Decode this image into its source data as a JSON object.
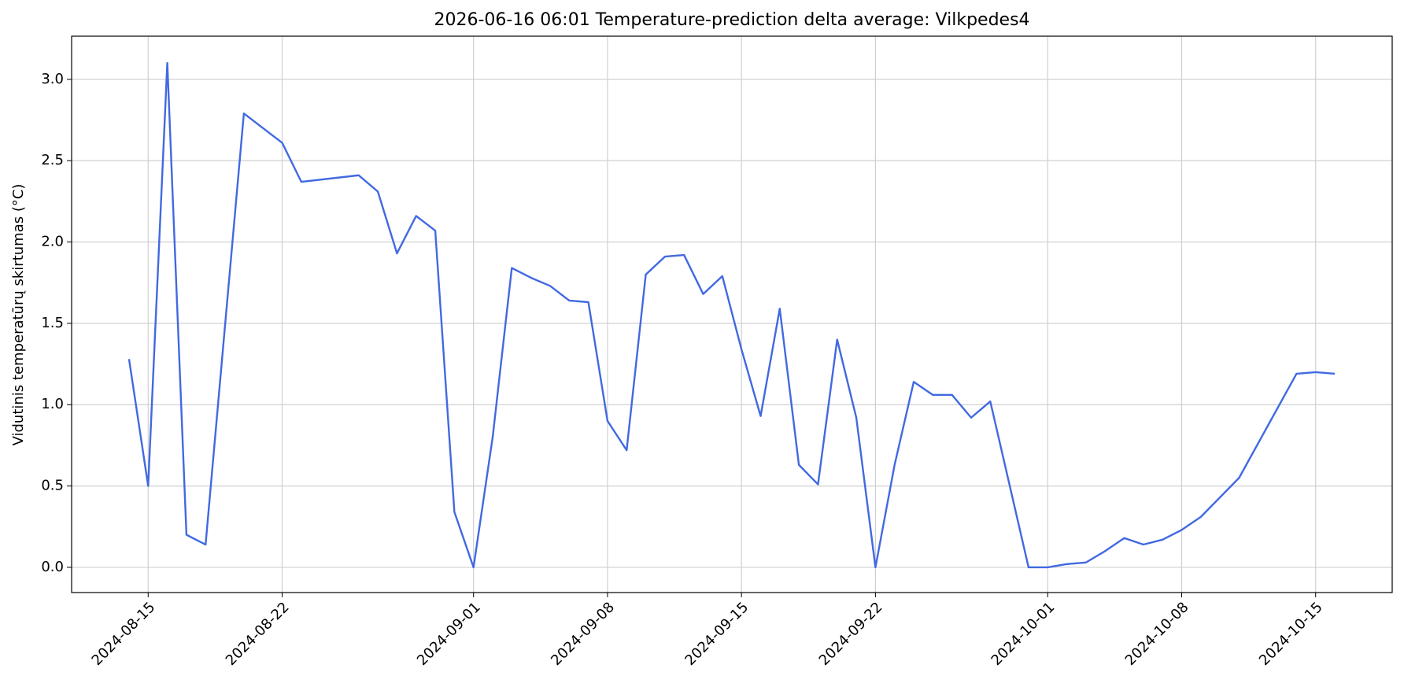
{
  "chart_data": {
    "type": "line",
    "title": "2026-06-16 06:01 Temperature-prediction delta average: Vilkpedes4",
    "y_label": "Vidutinis temperatūrų skirtumas (°C)",
    "x": [
      "2024-08-14",
      "2024-08-15",
      "2024-08-16",
      "2024-08-17",
      "2024-08-18",
      "2024-08-20",
      "2024-08-22",
      "2024-08-23",
      "2024-08-26",
      "2024-08-27",
      "2024-08-28",
      "2024-08-29",
      "2024-08-30",
      "2024-08-31",
      "2024-09-01",
      "2024-09-02",
      "2024-09-03",
      "2024-09-04",
      "2024-09-05",
      "2024-09-06",
      "2024-09-07",
      "2024-09-08",
      "2024-09-09",
      "2024-09-10",
      "2024-09-11",
      "2024-09-12",
      "2024-09-13",
      "2024-09-14",
      "2024-09-15",
      "2024-09-16",
      "2024-09-17",
      "2024-09-18",
      "2024-09-19",
      "2024-09-20",
      "2024-09-21",
      "2024-09-22",
      "2024-09-23",
      "2024-09-24",
      "2024-09-25",
      "2024-09-26",
      "2024-09-27",
      "2024-09-28",
      "2024-09-30",
      "2024-10-01",
      "2024-10-02",
      "2024-10-03",
      "2024-10-04",
      "2024-10-05",
      "2024-10-06",
      "2024-10-07",
      "2024-10-08",
      "2024-10-09",
      "2024-10-11",
      "2024-10-14",
      "2024-10-15",
      "2024-10-16"
    ],
    "series": [
      {
        "name": "delta",
        "color": "#4169e1",
        "values": [
          1.28,
          0.5,
          3.1,
          0.2,
          0.14,
          2.79,
          2.61,
          2.37,
          2.41,
          2.31,
          1.93,
          2.16,
          2.07,
          0.34,
          0.0,
          0.8,
          1.84,
          1.78,
          1.73,
          1.64,
          1.63,
          0.9,
          0.72,
          1.8,
          1.91,
          1.92,
          1.68,
          1.79,
          1.34,
          0.93,
          1.59,
          0.63,
          0.51,
          1.4,
          0.92,
          0.0,
          0.63,
          1.14,
          1.06,
          1.06,
          0.92,
          1.02,
          0.0,
          0.0,
          0.02,
          0.03,
          0.1,
          0.18,
          0.14,
          0.17,
          0.23,
          0.31,
          0.55,
          1.19,
          1.2,
          1.19
        ]
      }
    ],
    "xlim": [
      "2024-08-11",
      "2024-10-19"
    ],
    "xticks": [
      "2024-08-15",
      "2024-08-22",
      "2024-09-01",
      "2024-09-08",
      "2024-09-15",
      "2024-09-22",
      "2024-10-01",
      "2024-10-08",
      "2024-10-15"
    ],
    "ylim": [
      -0.155,
      3.265
    ],
    "yticks": [
      {
        "value": 0,
        "label": "0.0"
      },
      {
        "value": 0.5,
        "label": "0.5"
      },
      {
        "value": 1,
        "label": "1.0"
      },
      {
        "value": 1.5,
        "label": "1.5"
      },
      {
        "value": 2,
        "label": "2.0"
      },
      {
        "value": 2.5,
        "label": "2.5"
      },
      {
        "value": 3,
        "label": "3.0"
      }
    ],
    "grid": true
  }
}
